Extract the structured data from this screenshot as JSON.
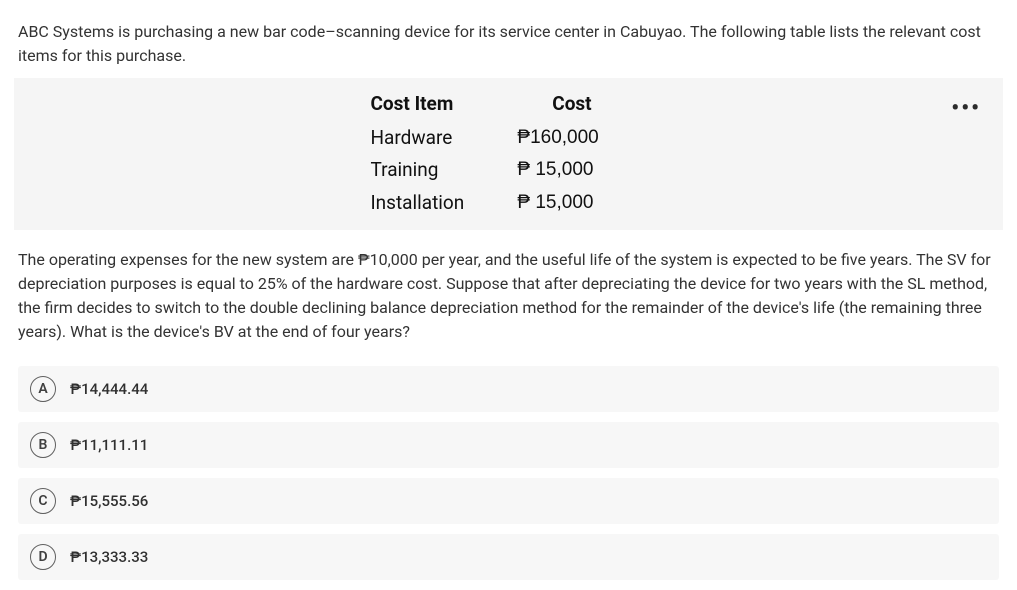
{
  "intro": "ABC Systems is purchasing a new bar code–scanning device for its service center in Cabuyao. The following table lists the relevant cost items for this purchase.",
  "table": {
    "headers": {
      "item": "Cost Item",
      "cost": "Cost"
    },
    "rows": [
      {
        "item": "Hardware",
        "cost": "₱160,000"
      },
      {
        "item": "Training",
        "cost": "₱ 15,000"
      },
      {
        "item": "Installation",
        "cost": "₱ 15,000"
      }
    ],
    "more_glyph": "•••",
    "header_fontweight": 700,
    "body_bg": "#f5f5f5",
    "text_color": "#111111"
  },
  "question": "The operating expenses for the new system are ₱10,000 per year, and the useful life of the system is expected to be five years. The SV for depreciation purposes is equal to 25% of the hardware cost. Suppose that after depreciating the device for two years with the SL method, the firm decides to switch to the double declining balance depreciation method for the remainder of the device's life (the remaining three years). What is the device's BV at the end of four years?",
  "choices": [
    {
      "letter": "A",
      "label": "₱14,444.44"
    },
    {
      "letter": "B",
      "label": "₱11,111.11"
    },
    {
      "letter": "C",
      "label": "₱15,555.56"
    },
    {
      "letter": "D",
      "label": "₱13,333.33"
    }
  ],
  "styles": {
    "page_bg": "#ffffff",
    "choice_bg": "#f7f7f7",
    "choice_border": "#606060",
    "text_color": "#333333"
  }
}
